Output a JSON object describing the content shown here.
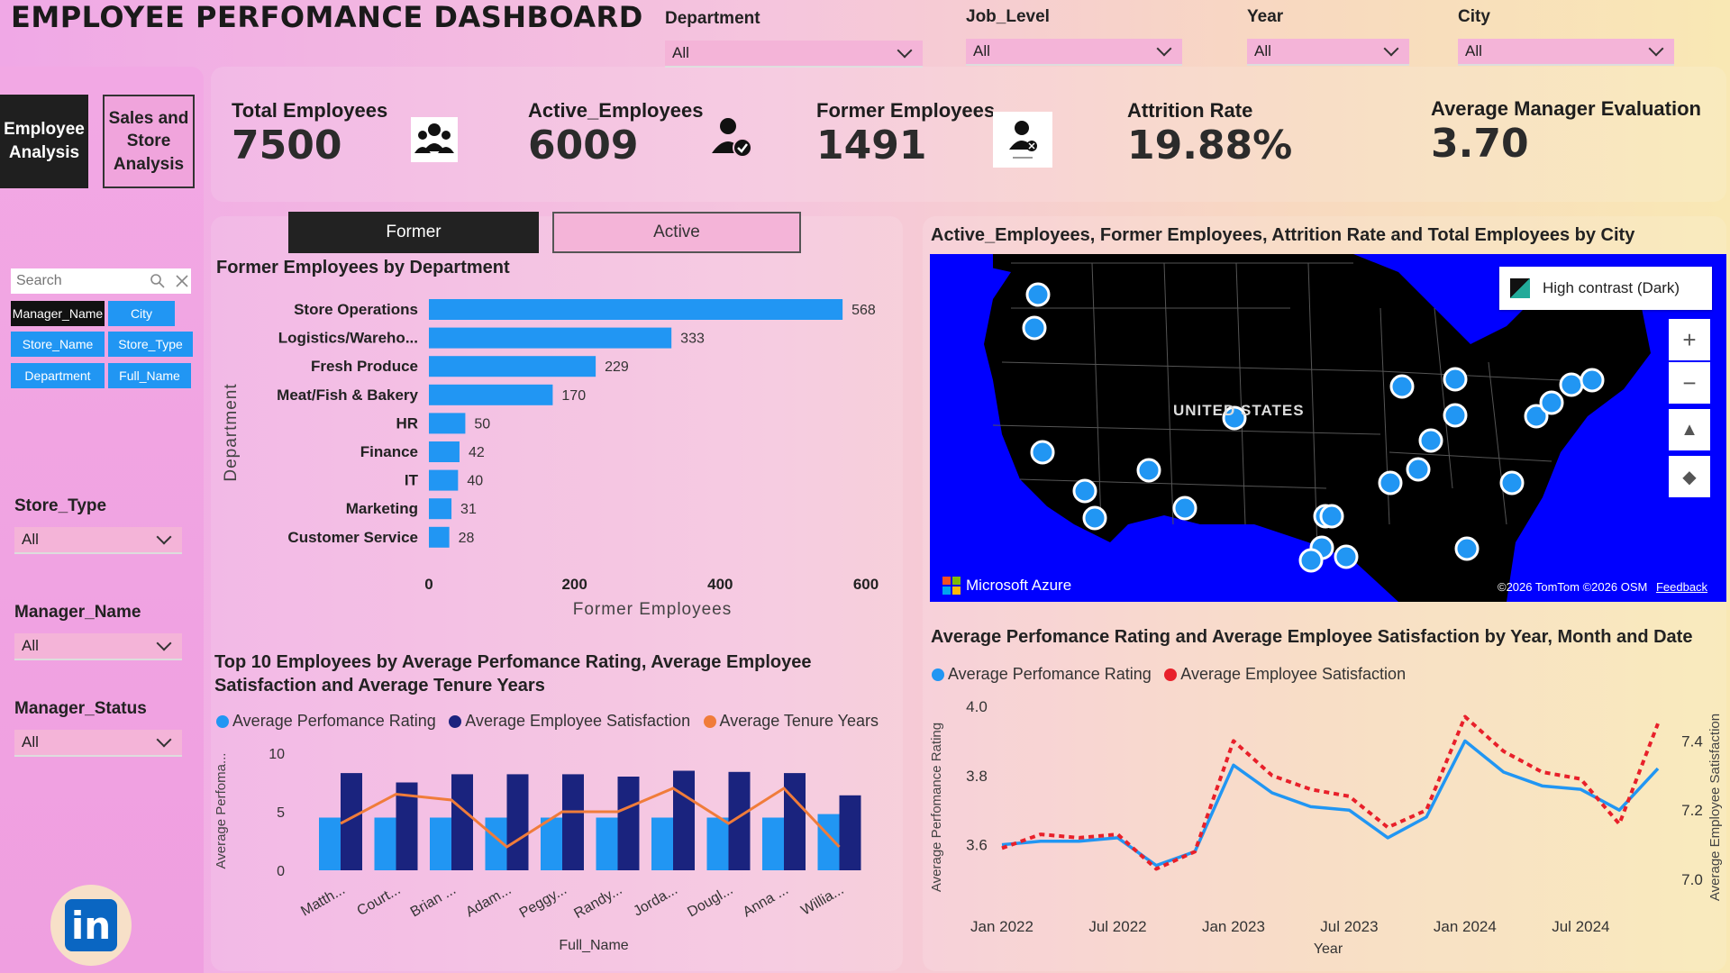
{
  "header": {
    "title": "EMPLOYEE PERFOMANCE DASHBOARD"
  },
  "filters": [
    {
      "label": "Department",
      "value": "All"
    },
    {
      "label": "Job_Level",
      "value": "All"
    },
    {
      "label": "Year",
      "value": "All"
    },
    {
      "label": "City",
      "value": "All"
    }
  ],
  "nav": {
    "employee": "Employee Analysis",
    "sales": "Sales and Store Analysis"
  },
  "search": {
    "placeholder": "Search"
  },
  "fields": [
    "Manager_Name",
    "City",
    "Store_Name",
    "Store_Type",
    "Department",
    "Full_Name"
  ],
  "side_filters": [
    {
      "label": "Store_Type",
      "value": "All"
    },
    {
      "label": "Manager_Name",
      "value": "All"
    },
    {
      "label": "Manager_Status",
      "value": "All"
    }
  ],
  "kpis": [
    {
      "label": "Total Employees",
      "value": "7500"
    },
    {
      "label": "Active_Employees",
      "value": "6009"
    },
    {
      "label": "Former Employees",
      "value": "1491"
    },
    {
      "label": "Attrition Rate",
      "value": "19.88%"
    },
    {
      "label": "Average Manager Evaluation",
      "value": "3.70"
    }
  ],
  "icons": {
    "total": "group-icon",
    "active": "user-check-icon",
    "former": "inactive-user-icon",
    "linkedin": "linkedin-icon"
  },
  "toggle": {
    "former": "Former",
    "active": "Active"
  },
  "colors": {
    "bar": "#2196f3",
    "dark": "#1a237e",
    "orange": "#f07c3a",
    "red": "#e8202a",
    "map_water": "#0000ff"
  },
  "dept_chart": {
    "title": "Former Employees by Department",
    "type": "bar",
    "categories": [
      "Store Operations",
      "Logistics/Wareho...",
      "Fresh Produce",
      "Meat/Fish & Bakery",
      "HR",
      "Finance",
      "IT",
      "Marketing",
      "Customer Service"
    ],
    "values": [
      568,
      333,
      229,
      170,
      50,
      42,
      40,
      31,
      28
    ],
    "xlabel": "Former Employees",
    "ylabel": "Department",
    "xticks": [
      "0",
      "200",
      "400",
      "600"
    ],
    "xlim": [
      0,
      600
    ]
  },
  "map": {
    "title": "Active_Employees, Former Employees, Attrition Rate and Total Employees by City",
    "style_label": "High contrast (Dark)",
    "country_label": "UNITED STATES",
    "brand": "Microsoft Azure",
    "copyright": "©2026 TomTom  ©2026 OSM",
    "feedback": "Feedback"
  },
  "top10": {
    "title_line1": "Top 10 Employees by Average Perfomance Rating, Average Employee",
    "title_line2": "Satisfaction and Average Tenure Years",
    "legend": [
      "Average Perfomance Rating",
      "Average Employee Satisfaction",
      "Average Tenure Years"
    ],
    "ylabel": "Average Perfoma...",
    "xlabel": "Full_Name",
    "yticks": [
      "10",
      "5",
      "0"
    ]
  },
  "trend": {
    "title": "Average Perfomance Rating and Average Employee Satisfaction by Year, Month and Date",
    "legend": [
      "Average Perfomance Rating",
      "Average Employee Satisfaction"
    ],
    "ylabel_left": "Average Perfomance Rating",
    "ylabel_right": "Average Employee Satisfaction",
    "xlabel": "Year",
    "yticks_left": [
      "4.0",
      "3.8",
      "3.6"
    ],
    "yticks_right": [
      "7.4",
      "7.2",
      "7.0"
    ],
    "xticks": [
      "Jan 2022",
      "Jul 2022",
      "Jan 2023",
      "Jul 2023",
      "Jan 2024",
      "Jul 2024"
    ]
  },
  "chart_data": [
    {
      "type": "bar",
      "title": "Former Employees by Department",
      "categories": [
        "Store Operations",
        "Logistics/Wareho...",
        "Fresh Produce",
        "Meat/Fish & Bakery",
        "HR",
        "Finance",
        "IT",
        "Marketing",
        "Customer Service"
      ],
      "values": [
        568,
        333,
        229,
        170,
        50,
        42,
        40,
        31,
        28
      ],
      "xlabel": "Former Employees",
      "ylabel": "Department",
      "xlim": [
        0,
        600
      ]
    },
    {
      "type": "bar",
      "title": "Top 10 Employees by Average Perfomance Rating, Average Employee Satisfaction and Average Tenure Years",
      "categories": [
        "Matth...",
        "Court...",
        "Brian ...",
        "Adam...",
        "Peggy...",
        "Randy...",
        "Jorda...",
        "Dougl...",
        "Anna ...",
        "Willia..."
      ],
      "series": [
        {
          "name": "Average Perfomance Rating",
          "values": [
            4.5,
            4.5,
            4.5,
            4.5,
            4.5,
            4.5,
            4.5,
            4.5,
            4.5,
            4.8
          ]
        },
        {
          "name": "Average Employee Satisfaction",
          "values": [
            8.3,
            7.5,
            8.2,
            8.2,
            8.2,
            8.0,
            8.5,
            8.4,
            8.3,
            6.4
          ]
        },
        {
          "name": "Average Tenure Years",
          "values": [
            4.0,
            6.5,
            6.0,
            2.0,
            5.0,
            5.0,
            7.0,
            4.0,
            7.0,
            2.0
          ]
        }
      ],
      "xlabel": "Full_Name",
      "ylabel": "Average Perfoma...",
      "ylim": [
        0,
        10
      ]
    },
    {
      "type": "line",
      "title": "Average Perfomance Rating and Average Employee Satisfaction by Year, Month and Date",
      "x": [
        "Jan 2022",
        "Mar 2022",
        "May 2022",
        "Jul 2022",
        "Sep 2022",
        "Nov 2022",
        "Jan 2023",
        "Mar 2023",
        "May 2023",
        "Jul 2023",
        "Sep 2023",
        "Nov 2023",
        "Jan 2024",
        "Mar 2024",
        "May 2024",
        "Jul 2024",
        "Sep 2024",
        "Nov 2024"
      ],
      "series": [
        {
          "name": "Average Perfomance Rating",
          "axis": "left",
          "values": [
            3.6,
            3.61,
            3.61,
            3.62,
            3.54,
            3.58,
            3.83,
            3.75,
            3.71,
            3.7,
            3.62,
            3.68,
            3.9,
            3.81,
            3.77,
            3.76,
            3.7,
            3.82
          ]
        },
        {
          "name": "Average Employee Satisfaction",
          "axis": "right",
          "values": [
            7.09,
            7.13,
            7.12,
            7.13,
            7.03,
            7.08,
            7.4,
            7.3,
            7.26,
            7.24,
            7.15,
            7.2,
            7.47,
            7.37,
            7.31,
            7.29,
            7.16,
            7.45
          ]
        }
      ],
      "xlabel": "Year",
      "ylim_left": [
        3.5,
        4.0
      ],
      "ylim_right": [
        7.0,
        7.5
      ]
    }
  ]
}
